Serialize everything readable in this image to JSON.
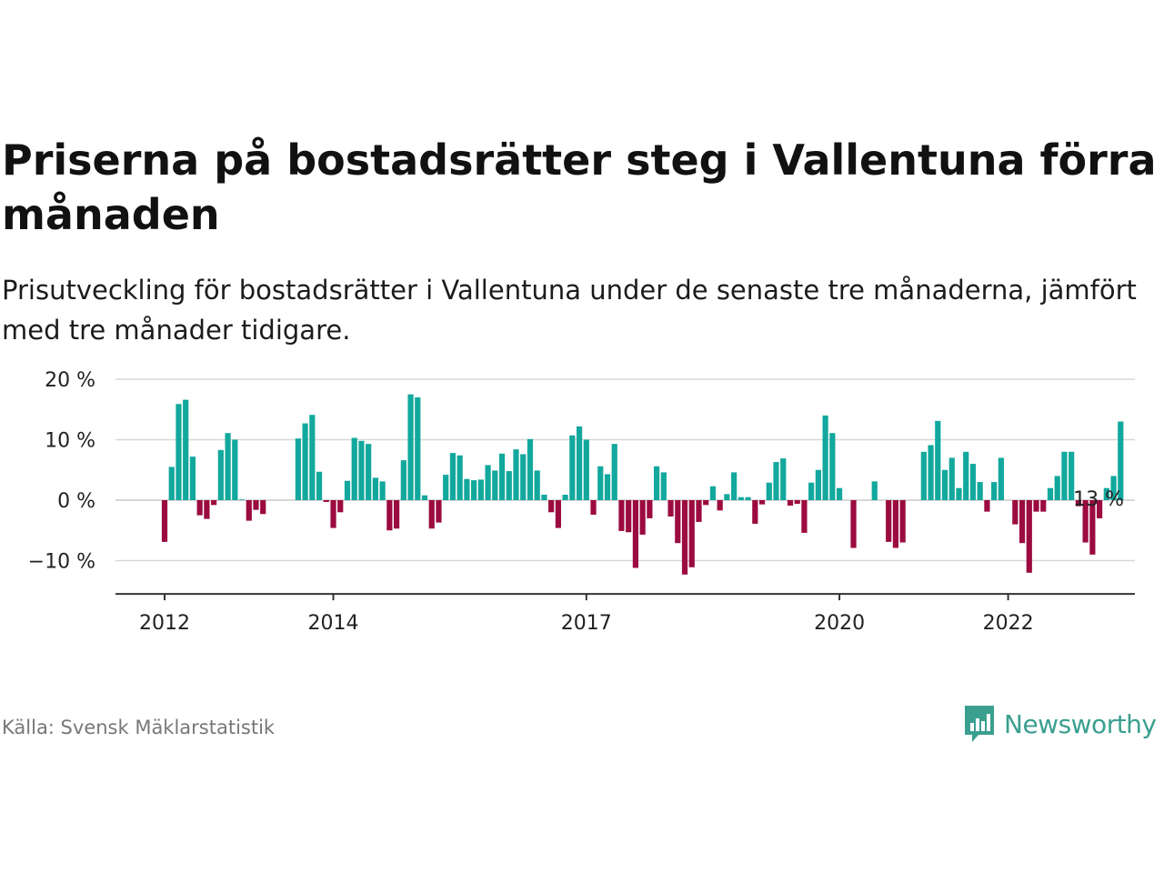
{
  "title": "Priserna på bostadsrätter steg i Vallentuna förra månaden",
  "subtitle": "Prisutveckling för bostadsrätter i Vallentuna under de senaste tre månaderna, jämfört med tre månader tidigare.",
  "source": "Källa: Svensk Mäklarstatistik",
  "brand": {
    "name": "Newsworthy",
    "color": "#3a9f8f",
    "icon": "newsworthy-logo-icon"
  },
  "colors": {
    "positive": "#12a89d",
    "negative": "#9b0b3f",
    "grid": "#d8d8d8",
    "axis": "#333333"
  },
  "chart_data": {
    "type": "bar",
    "x_start": "2012-01",
    "x_tick_labels": [
      "2012",
      "2014",
      "2017",
      "2020",
      "2022"
    ],
    "x_tick_dates": [
      "2012-01",
      "2014-01",
      "2017-01",
      "2020-01",
      "2022-01"
    ],
    "y_ticks": [
      20,
      10,
      0,
      -10
    ],
    "y_tick_labels": [
      "20 %",
      "10 %",
      "0 %",
      "−10 %"
    ],
    "ylim": [
      -14,
      20
    ],
    "grid": true,
    "annotation": {
      "text": "13 %",
      "date": "2023-02"
    },
    "values": [
      -6.9,
      5.5,
      15.9,
      16.6,
      7.2,
      -2.5,
      -3.1,
      -0.8,
      8.3,
      11.1,
      10.0,
      0.1,
      -3.4,
      -1.6,
      -2.3,
      null,
      null,
      null,
      null,
      10.2,
      12.7,
      14.1,
      4.7,
      -0.3,
      -4.6,
      -2.0,
      3.2,
      10.3,
      9.8,
      9.3,
      3.7,
      3.1,
      -5.0,
      -4.7,
      6.6,
      17.5,
      17.0,
      0.8,
      -4.7,
      -3.7,
      4.2,
      7.8,
      7.4,
      3.5,
      3.3,
      3.4,
      5.8,
      4.9,
      7.7,
      4.8,
      8.4,
      7.6,
      10.1,
      4.9,
      0.9,
      -2.0,
      -4.6,
      0.9,
      10.7,
      12.2,
      10.0,
      -2.4,
      5.6,
      4.3,
      9.3,
      -5.1,
      -5.3,
      -11.2,
      -5.7,
      -3.0,
      5.6,
      4.6,
      -2.7,
      -7.1,
      -12.3,
      -11.1,
      -3.6,
      -0.8,
      2.3,
      -1.7,
      1.0,
      4.6,
      0.5,
      0.5,
      -3.9,
      -0.7,
      2.9,
      6.3,
      6.9,
      -0.9,
      -0.6,
      -5.4,
      2.9,
      5.0,
      14.0,
      11.1,
      2.0,
      null,
      -7.9,
      null,
      null,
      3.1,
      null,
      -6.9,
      -7.9,
      -7.0,
      null,
      null,
      8.0,
      9.1,
      13.1,
      5.0,
      7.0,
      2.0,
      8.0,
      6.0,
      3.0,
      -1.9,
      3.0,
      7.0,
      null,
      -4.0,
      -7.1,
      -12.0,
      -1.9,
      -1.9,
      2.0,
      4.0,
      8.0,
      8.0,
      -1.0,
      -7.0,
      -9.0,
      -3.0,
      2.0,
      4.0,
      13.0
    ]
  }
}
